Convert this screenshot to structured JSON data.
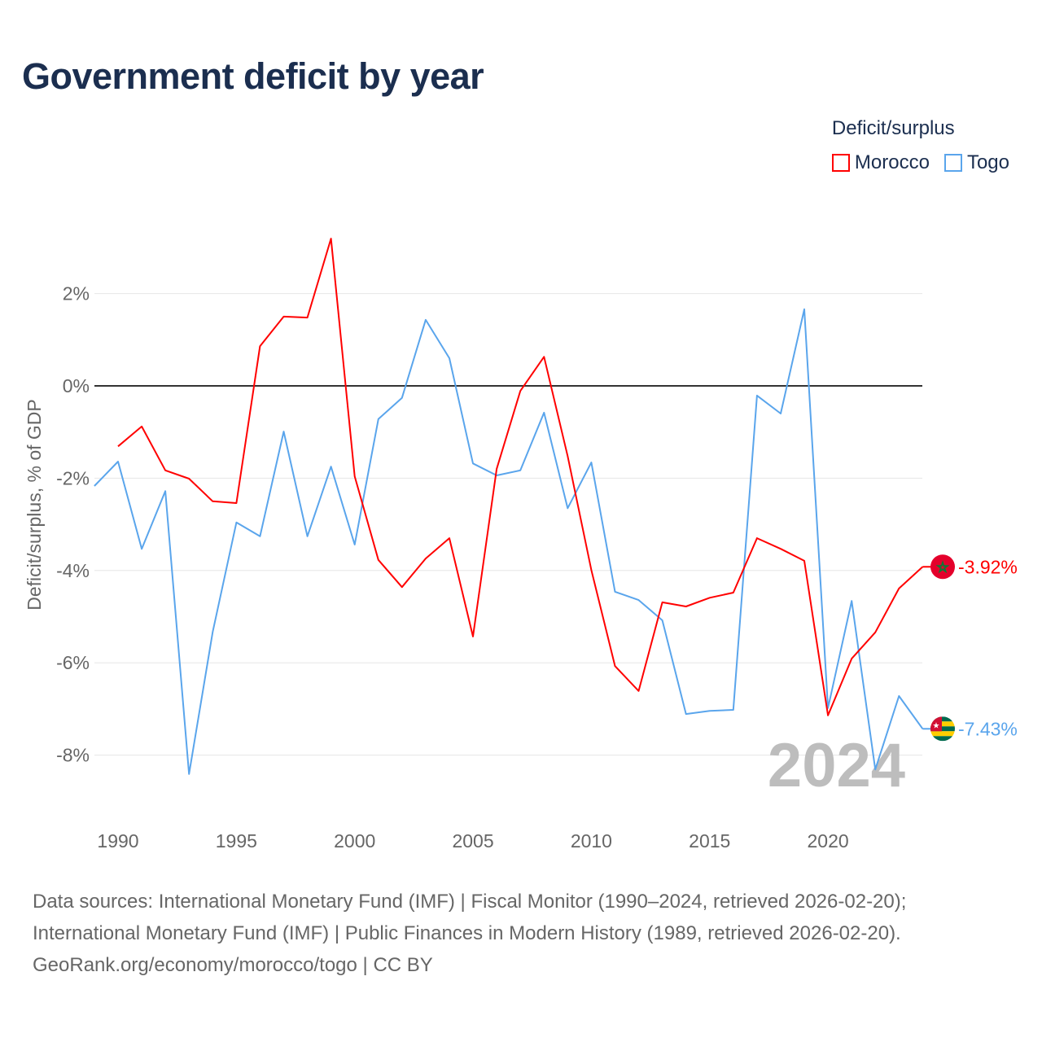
{
  "title": "Government deficit by year",
  "legend": {
    "title": "Deficit/surplus",
    "items": [
      "Morocco",
      "Togo"
    ]
  },
  "year_watermark": "2024",
  "sources": [
    "Data sources: International Monetary Fund (IMF) | Fiscal Monitor (1990–2024, retrieved 2026-02-20);",
    "International Monetary Fund (IMF) | Public Finances in Modern History (1989, retrieved 2026-02-20).",
    "GeoRank.org/economy/morocco/togo | CC BY"
  ],
  "chart_data": {
    "type": "line",
    "title": "Government deficit by year",
    "xlabel": "",
    "ylabel": "Deficit/surplus, % of GDP",
    "xlim": [
      1989,
      2024
    ],
    "ylim": [
      -9.5,
      3.5
    ],
    "x_ticks": [
      1990,
      1995,
      2000,
      2005,
      2010,
      2015,
      2020
    ],
    "y_ticks": [
      2,
      0,
      -2,
      -4,
      -6,
      -8
    ],
    "y_tick_labels": [
      "2%",
      "0%",
      "-2%",
      "-4%",
      "-6%",
      "-8%"
    ],
    "grid": true,
    "legend_position": "top-right",
    "series": [
      {
        "name": "Morocco",
        "color": "#ff0000",
        "end_label": "-3.92%",
        "start": 1990,
        "values": [
          -1.31,
          -0.88,
          -1.83,
          -2.01,
          -2.5,
          -2.54,
          0.86,
          1.5,
          1.48,
          3.19,
          -1.96,
          -3.77,
          -4.36,
          -3.74,
          -3.3,
          -5.43,
          -1.8,
          -0.11,
          0.63,
          -1.52,
          -3.99,
          -6.07,
          -6.61,
          -4.69,
          -4.78,
          -4.59,
          -4.48,
          -3.3,
          -3.53,
          -3.79,
          -7.14,
          -5.91,
          -5.34,
          -4.39,
          -3.92
        ]
      },
      {
        "name": "Togo",
        "color": "#5aa5ec",
        "end_label": "-7.43%",
        "start": 1989,
        "values": [
          -2.17,
          -1.64,
          -3.53,
          -2.28,
          -8.41,
          -5.33,
          -2.96,
          -3.26,
          -0.99,
          -3.26,
          -1.75,
          -3.44,
          -0.72,
          -0.26,
          1.43,
          0.6,
          -1.68,
          -1.94,
          -1.83,
          -0.58,
          -2.65,
          -1.66,
          -4.46,
          -4.64,
          -5.08,
          -7.11,
          -7.04,
          -7.02,
          -0.21,
          -0.6,
          1.66,
          -6.98,
          -4.66,
          -8.31,
          -6.72,
          -7.43
        ]
      }
    ]
  }
}
